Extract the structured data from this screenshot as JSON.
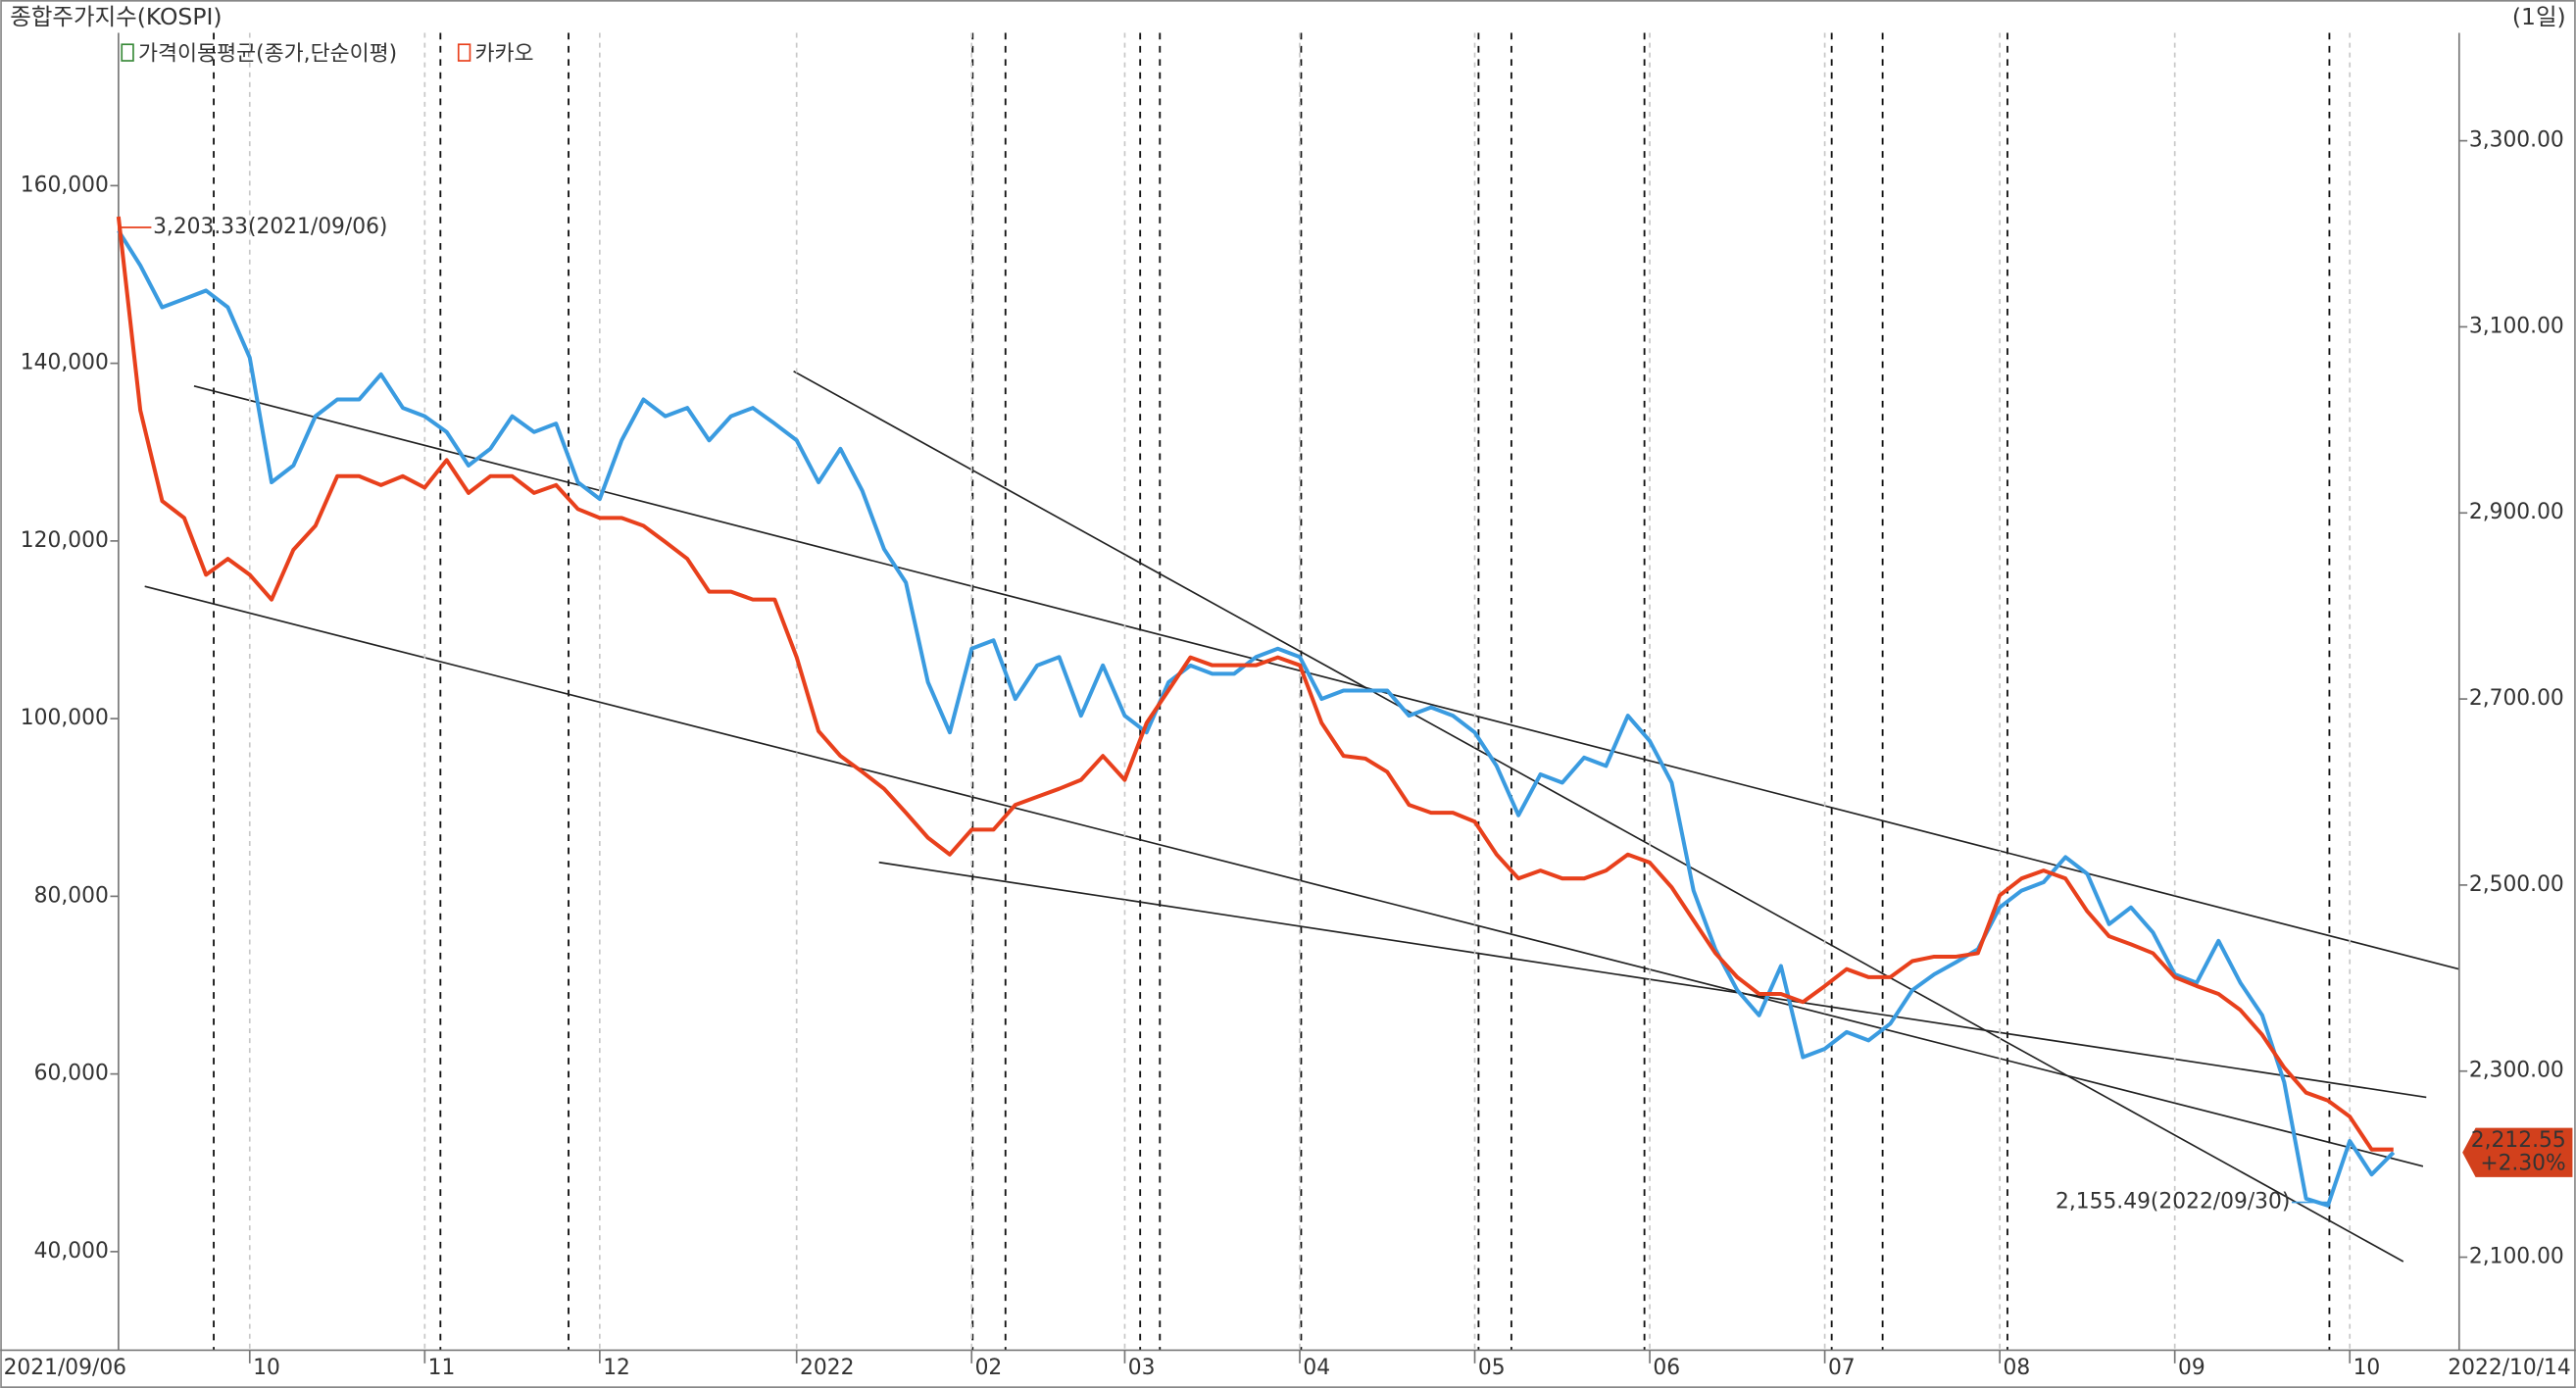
{
  "chart_data": {
    "type": "line",
    "period": "(1일)",
    "indicator": "가격이동평균(종가,단순이평)",
    "categories": [
      "2021/09/06",
      null,
      null,
      null,
      null,
      null,
      "10",
      null,
      null,
      null,
      null,
      null,
      null,
      null,
      "11",
      null,
      null,
      null,
      null,
      null,
      null,
      null,
      "12",
      null,
      null,
      null,
      null,
      null,
      null,
      null,
      null,
      "2022",
      null,
      null,
      null,
      null,
      null,
      null,
      null,
      "02",
      null,
      null,
      null,
      null,
      null,
      null,
      "03",
      null,
      null,
      null,
      null,
      null,
      null,
      null,
      "04",
      null,
      null,
      null,
      null,
      null,
      null,
      null,
      "05",
      null,
      null,
      null,
      null,
      null,
      null,
      null,
      "06",
      null,
      null,
      null,
      null,
      null,
      null,
      null,
      "07",
      null,
      null,
      null,
      null,
      null,
      null,
      null,
      "08",
      null,
      null,
      null,
      null,
      null,
      null,
      null,
      "09",
      null,
      null,
      null,
      null,
      null,
      null,
      null,
      "10",
      null,
      null,
      null,
      null,
      "2022/10/14"
    ],
    "series": [
      {
        "name": "카카오",
        "color": "#e8401c",
        "axis": "y",
        "values": [
          156500,
          134700,
          124500,
          122600,
          116200,
          118000,
          116200,
          113400,
          119000,
          121700,
          127300,
          127300,
          126300,
          127300,
          126000,
          129100,
          125400,
          127300,
          127300,
          125400,
          126300,
          123600,
          122600,
          122600,
          121700,
          119900,
          118000,
          114300,
          114300,
          113400,
          113400,
          106900,
          98600,
          95800,
          94000,
          92100,
          89400,
          86600,
          84700,
          87500,
          87500,
          90300,
          91200,
          92100,
          93100,
          95800,
          93100,
          99500,
          103200,
          106900,
          106000,
          106000,
          106000,
          106900,
          106000,
          99500,
          95800,
          95500,
          94000,
          90300,
          89400,
          89400,
          88400,
          84700,
          82000,
          82900,
          82000,
          82000,
          82900,
          84700,
          83800,
          81000,
          77300,
          73600,
          70900,
          69000,
          69000,
          68100,
          69900,
          71800,
          70900,
          70900,
          72700,
          73200,
          73200,
          73600,
          80100,
          82000,
          82900,
          82000,
          78300,
          75500,
          74600,
          73600,
          70900,
          69900,
          69000,
          67200,
          64400,
          60700,
          57900,
          57000,
          55200,
          51500,
          51500,
          null,
          null,
          null
        ]
      },
      {
        "name": "종합주가지수(KOSPI)",
        "color": "#3a9be0",
        "axis": "y2",
        "values": [
          3203.33,
          3166,
          3121,
          3130,
          3139,
          3121,
          3067,
          2933,
          2951,
          3004,
          3022,
          3022,
          3049,
          3013,
          3004,
          2987,
          2951,
          2969,
          3004,
          2987,
          2996,
          2933,
          2915,
          2978,
          3022,
          3004,
          3013,
          2978,
          3004,
          3013,
          2996,
          2978,
          2933,
          2969,
          2924,
          2861,
          2825,
          2718,
          2664,
          2754,
          2763,
          2700,
          2736,
          2745,
          2682,
          2736,
          2682,
          2664,
          2718,
          2736,
          2727,
          2727,
          2745,
          2754,
          2745,
          2700,
          2709,
          2709,
          2709,
          2682,
          2691,
          2682,
          2664,
          2628,
          2575,
          2619,
          2610,
          2637,
          2628,
          2682,
          2655,
          2610,
          2494,
          2431,
          2387,
          2360,
          2413,
          2315,
          2324,
          2342,
          2333,
          2351,
          2387,
          2404,
          2417,
          2431,
          2476,
          2494,
          2503,
          2530,
          2512,
          2458,
          2476,
          2449,
          2404,
          2395,
          2440,
          2395,
          2360,
          2288,
          2163,
          2155.49,
          2225,
          2189,
          2212.55,
          null,
          null,
          null
        ]
      }
    ],
    "ylim": [
      28900,
      177200
    ],
    "yticks": [
      {
        "value": 40000,
        "label": "40,000"
      },
      {
        "value": 60000,
        "label": "60,000"
      },
      {
        "value": 80000,
        "label": "80,000"
      },
      {
        "value": 100000,
        "label": "100,000"
      },
      {
        "value": 120000,
        "label": "120,000"
      },
      {
        "value": 140000,
        "label": "140,000"
      },
      {
        "value": 160000,
        "label": "160,000"
      }
    ],
    "y2lim": [
      2000,
      3416
    ],
    "y2ticks": [
      {
        "value": 2100,
        "label": "2,100.00"
      },
      {
        "value": 2300,
        "label": "2,300.00"
      },
      {
        "value": 2500,
        "label": "2,500.00"
      },
      {
        "value": 2700,
        "label": "2,700.00"
      },
      {
        "value": 2900,
        "label": "2,900.00"
      },
      {
        "value": 3100,
        "label": "3,100.00"
      },
      {
        "value": 3300,
        "label": "3,300.00"
      }
    ],
    "annotations": [
      {
        "text": "3,203.33(2021/09/06)",
        "color": "#e8401c"
      },
      {
        "text": "2,155.49(2022/09/30)",
        "color": "#3a9be0"
      }
    ],
    "last_price": {
      "value_label": "2,212.55",
      "change": "+2.30%",
      "color": "#d2401c"
    }
  }
}
